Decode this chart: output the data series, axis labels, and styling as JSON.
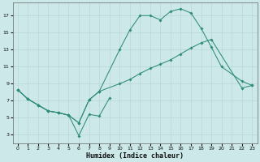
{
  "xlabel": "Humidex (Indice chaleur)",
  "bg_color": "#cce8e8",
  "grid_color": "#b8d8d8",
  "line_color": "#2e8b7a",
  "xlim": [
    -0.5,
    23.5
  ],
  "ylim": [
    2.0,
    18.5
  ],
  "yticks": [
    3,
    5,
    7,
    9,
    11,
    13,
    15,
    17
  ],
  "xticks": [
    0,
    1,
    2,
    3,
    4,
    5,
    6,
    7,
    8,
    9,
    10,
    11,
    12,
    13,
    14,
    15,
    16,
    17,
    18,
    19,
    20,
    21,
    22,
    23
  ],
  "line1_x": [
    0,
    1,
    2,
    3,
    4,
    5,
    6,
    7,
    8,
    10,
    11,
    12,
    13,
    14,
    15,
    16,
    17,
    18,
    19,
    20,
    22,
    23
  ],
  "line1_y": [
    8.3,
    7.2,
    6.5,
    5.8,
    5.6,
    5.3,
    4.4,
    7.1,
    8.1,
    13.0,
    15.3,
    17.0,
    17.0,
    16.5,
    17.5,
    17.8,
    17.3,
    15.5,
    13.3,
    11.0,
    9.3,
    8.8
  ],
  "line2_x": [
    0,
    1,
    2,
    3,
    4,
    5,
    6,
    7,
    8,
    10,
    11,
    12,
    13,
    14,
    15,
    16,
    17,
    18,
    19,
    22,
    23
  ],
  "line2_y": [
    8.3,
    7.2,
    6.5,
    5.8,
    5.6,
    5.3,
    4.4,
    7.1,
    8.1,
    9.0,
    9.5,
    10.2,
    10.8,
    11.3,
    11.8,
    12.5,
    13.2,
    13.8,
    14.2,
    8.5,
    8.8
  ],
  "line3_x": [
    0,
    1,
    2,
    3,
    4,
    5,
    6,
    7,
    8,
    9
  ],
  "line3_y": [
    8.3,
    7.2,
    6.5,
    5.8,
    5.6,
    5.3,
    2.9,
    5.4,
    5.2,
    7.3
  ]
}
